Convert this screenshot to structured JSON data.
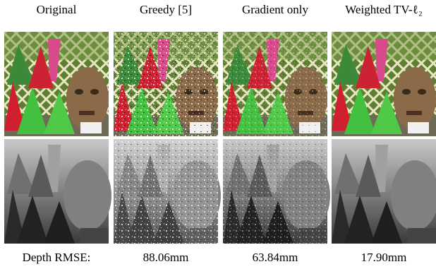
{
  "columns": [
    "Original",
    "Greedy [5]",
    "Gradient only",
    "Weighted TV-ℓ₂"
  ],
  "footer": {
    "label": "Depth RMSE:",
    "values": [
      "88.06mm",
      "63.84mm",
      "17.90mm"
    ]
  }
}
